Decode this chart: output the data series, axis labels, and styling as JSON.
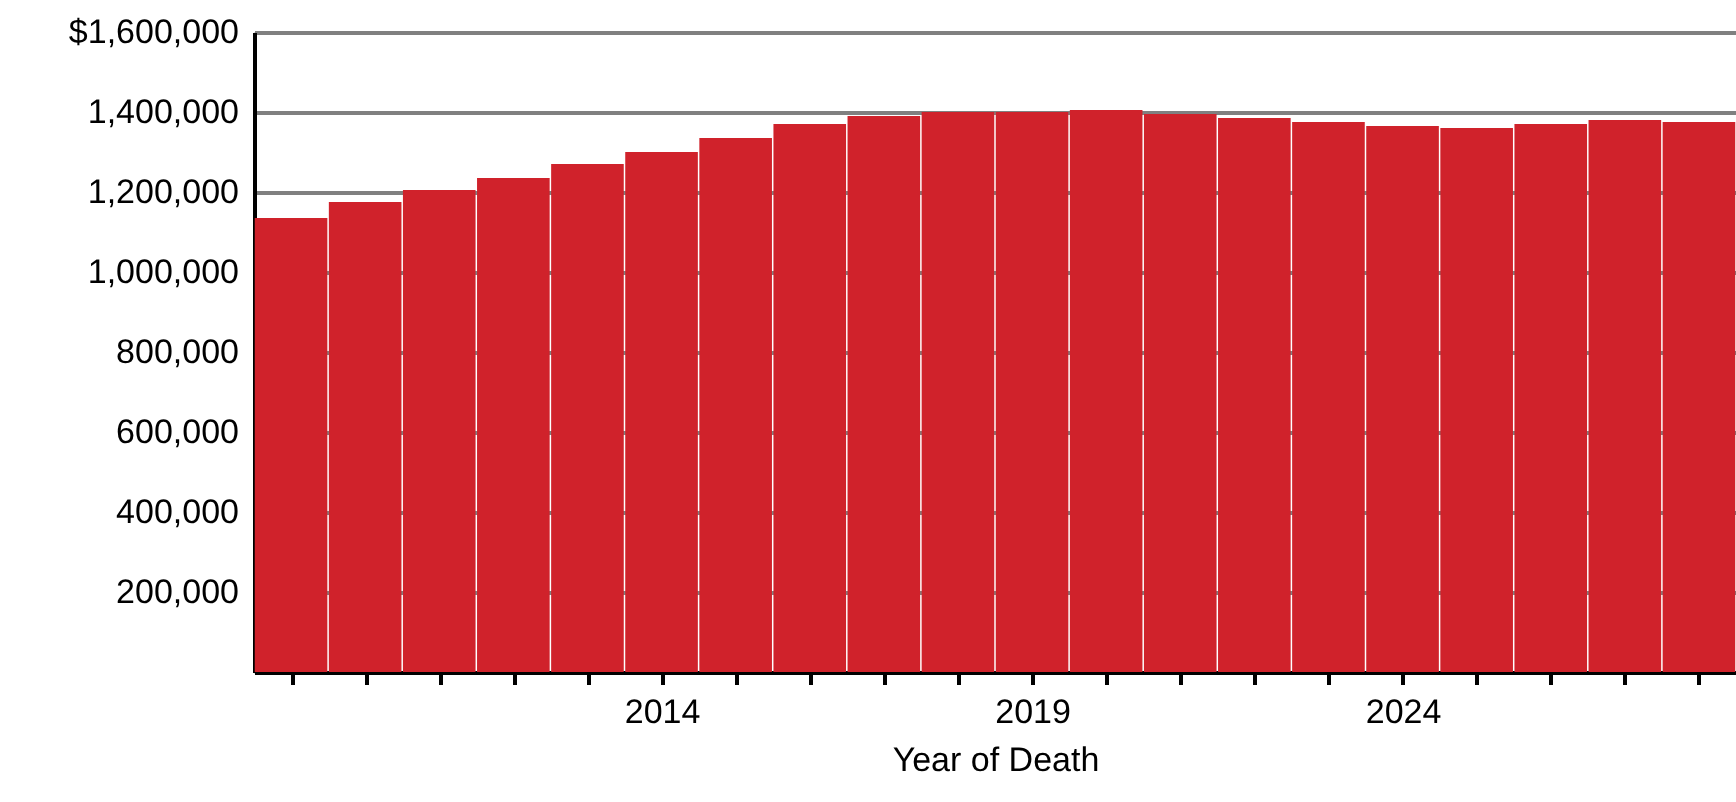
{
  "chart_data": {
    "type": "bar",
    "xlabel": "Year of Death",
    "x": [
      2009,
      2010,
      2011,
      2012,
      2013,
      2014,
      2015,
      2016,
      2017,
      2018,
      2019,
      2020,
      2021,
      2022,
      2023,
      2024,
      2025,
      2026,
      2027,
      2028
    ],
    "series": [
      {
        "color": "#d0222b",
        "values": [
          1135000,
          1175000,
          1205000,
          1235000,
          1270000,
          1300000,
          1335000,
          1370000,
          1390000,
          1400000,
          1400000,
          1405000,
          1395000,
          1385000,
          1375000,
          1365000,
          1360000,
          1370000,
          1380000,
          1375000
        ]
      }
    ],
    "xlim": [
      2008.5,
      2028.5
    ],
    "xticks": [
      {
        "value": 2009,
        "label": null
      },
      {
        "value": 2010,
        "label": null
      },
      {
        "value": 2011,
        "label": null
      },
      {
        "value": 2012,
        "label": null
      },
      {
        "value": 2013,
        "label": null
      },
      2014,
      {
        "value": 2015,
        "label": null
      },
      {
        "value": 2016,
        "label": null
      },
      {
        "value": 2017,
        "label": null
      },
      {
        "value": 2018,
        "label": null
      },
      2019,
      {
        "value": 2020,
        "label": null
      },
      {
        "value": 2021,
        "label": null
      },
      {
        "value": 2022,
        "label": null
      },
      {
        "value": 2023,
        "label": null
      },
      2024,
      {
        "value": 2025,
        "label": null
      },
      {
        "value": 2026,
        "label": null
      },
      {
        "value": 2027,
        "label": null
      },
      {
        "value": 2028,
        "label": null
      }
    ],
    "ylim": [
      0,
      1600000
    ],
    "yticks": [
      {
        "value": 200000,
        "label": "200,000"
      },
      {
        "value": 400000,
        "label": "400,000"
      },
      {
        "value": 600000,
        "label": "600,000"
      },
      {
        "value": 800000,
        "label": "800,000"
      },
      {
        "value": 1000000,
        "label": "1,000,000"
      },
      {
        "value": 1200000,
        "label": "1,200,000"
      },
      {
        "value": 1400000,
        "label": "1,400,000"
      },
      {
        "value": 1600000,
        "label": "$1,600,000"
      }
    ],
    "grid": "y"
  }
}
